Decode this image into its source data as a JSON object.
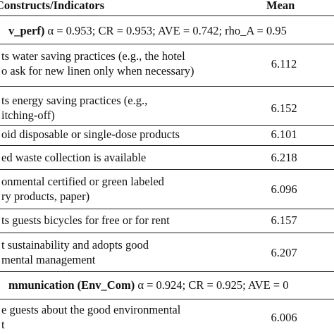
{
  "table": {
    "header": {
      "indicator": "Constructs/Indicators",
      "mean": "Mean"
    },
    "rows": [
      {
        "bold": "v_perf)",
        "text": " α = 0.953; CR = 0.953; AVE = 0.742; rho_A = 0.95"
      },
      {
        "lines": [
          "ts water saving practices (e.g., the hotel",
          "o ask for new linen only when necessary)"
        ],
        "mean": "6.112"
      },
      {
        "lines": [
          "ts energy saving practices (e.g.,",
          "itching-off)"
        ],
        "mean": "6.152"
      },
      {
        "lines": [
          "oid disposable or single-dose products"
        ],
        "mean": "6.101"
      },
      {
        "lines": [
          "ed waste collection is available"
        ],
        "mean": "6.218"
      },
      {
        "lines": [
          "onmental certified or green labeled",
          "ry products, paper)"
        ],
        "mean": "6.096"
      },
      {
        "lines": [
          "ts guests bicycles for free or for rent"
        ],
        "mean": "6.157"
      },
      {
        "lines": [
          "t sustainability and adopts good",
          "mental management"
        ],
        "mean": "6.207"
      },
      {
        "bold": "mmunication (Env_Com)",
        "text": " α = 0.924; CR = 0.925; AVE = 0"
      },
      {
        "lines": [
          "e guests about the good environmental",
          "t"
        ],
        "mean": "6.006"
      }
    ]
  }
}
